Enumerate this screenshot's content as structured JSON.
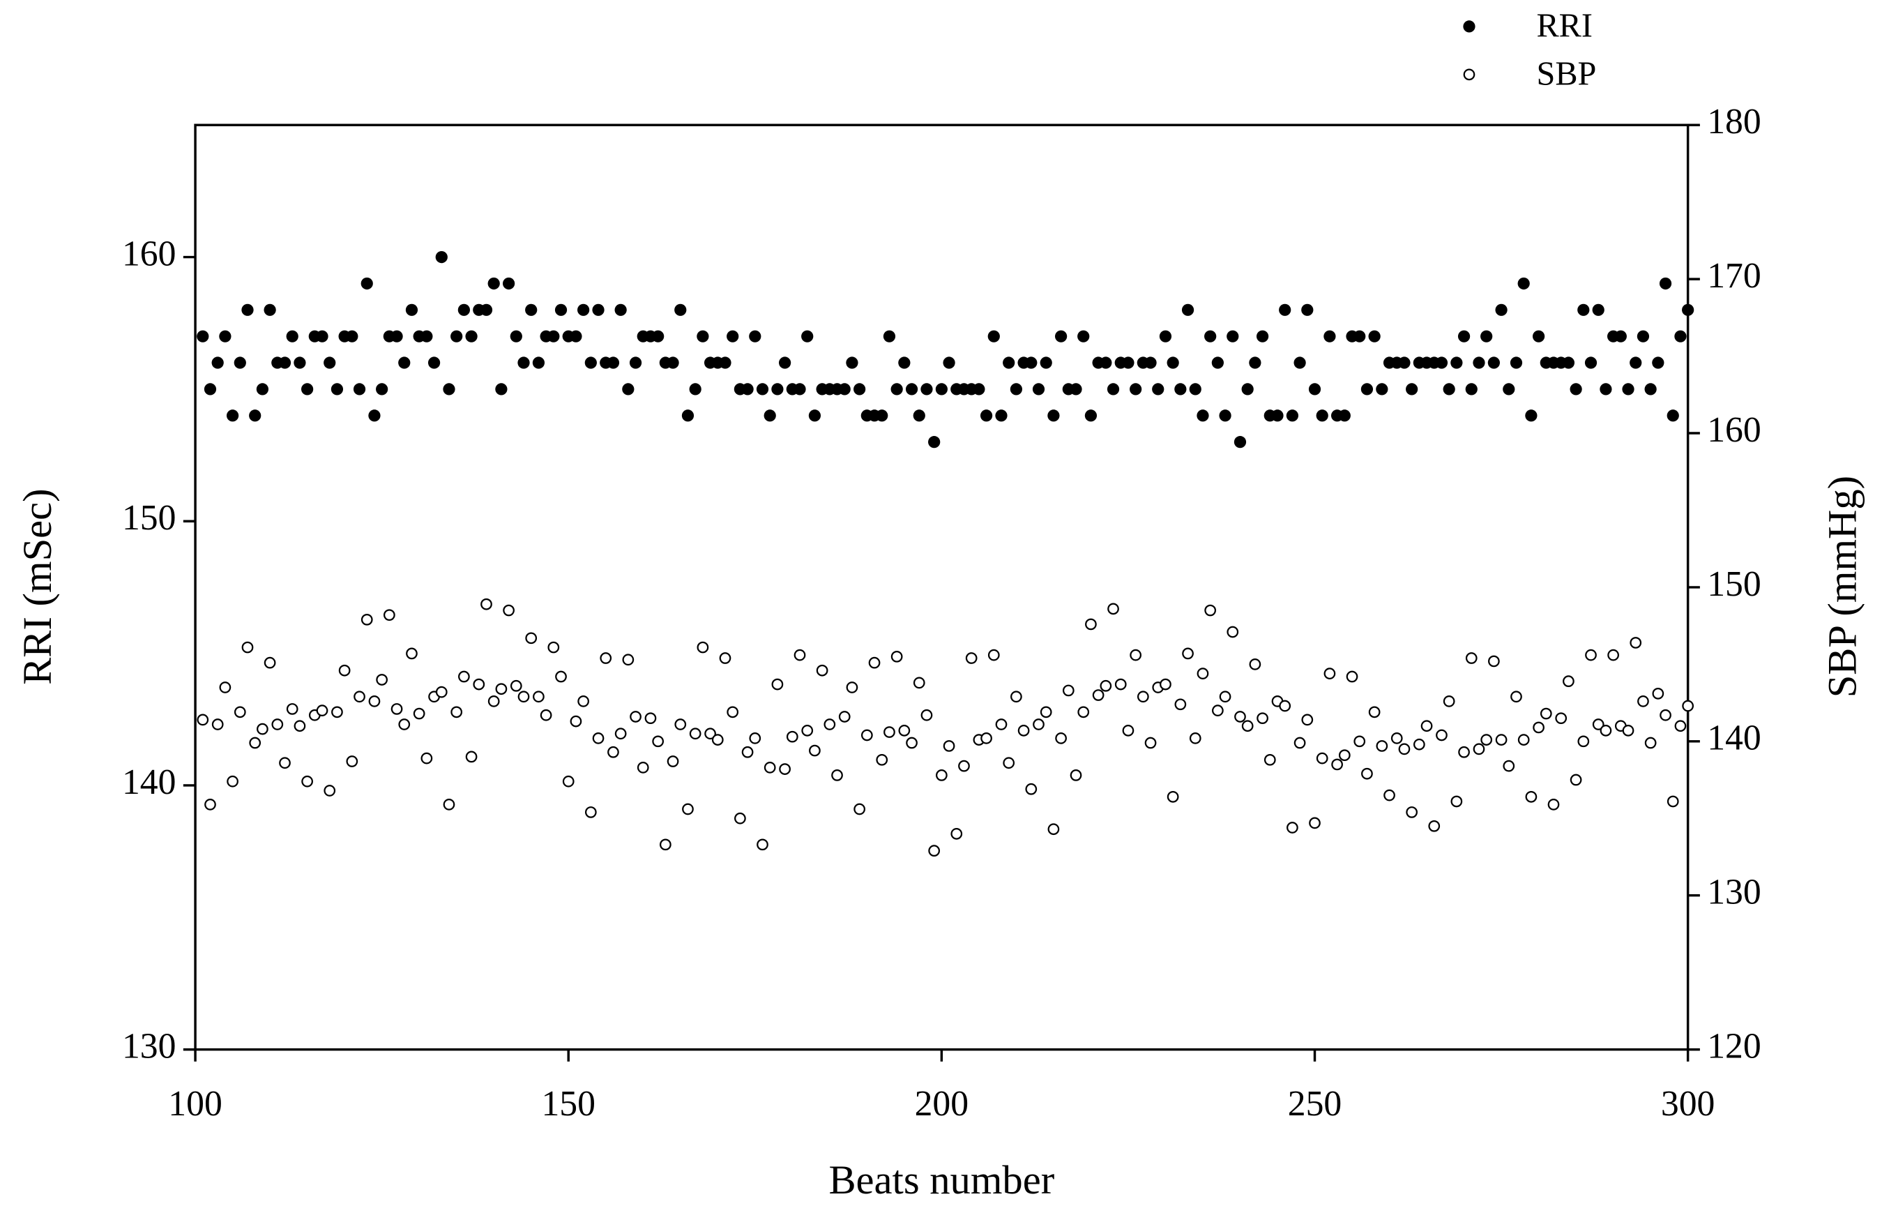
{
  "chart_data": {
    "type": "scatter",
    "x_label": "Beats number",
    "y_label": "RRI (mSec)",
    "y2_label": "SBP (mmHg)",
    "xlim": [
      100,
      300
    ],
    "xticks": [
      100,
      150,
      200,
      250,
      300
    ],
    "ylim": [
      130,
      165
    ],
    "yticks": [
      130,
      140,
      150,
      160
    ],
    "y2lim": [
      120,
      180
    ],
    "y2ticks": [
      120,
      130,
      140,
      150,
      160,
      170,
      180
    ],
    "legend": "upper right",
    "grid": false,
    "x": [
      101,
      102,
      103,
      104,
      105,
      106,
      107,
      108,
      109,
      110,
      111,
      112,
      113,
      114,
      115,
      116,
      117,
      118,
      119,
      120,
      121,
      122,
      123,
      124,
      125,
      126,
      127,
      128,
      129,
      130,
      131,
      132,
      133,
      134,
      135,
      136,
      137,
      138,
      139,
      140,
      141,
      142,
      143,
      144,
      145,
      146,
      147,
      148,
      149,
      150,
      151,
      152,
      153,
      154,
      155,
      156,
      157,
      158,
      159,
      160,
      161,
      162,
      163,
      164,
      165,
      166,
      167,
      168,
      169,
      170,
      171,
      172,
      173,
      174,
      175,
      176,
      177,
      178,
      179,
      180,
      181,
      182,
      183,
      184,
      185,
      186,
      187,
      188,
      189,
      190,
      191,
      192,
      193,
      194,
      195,
      196,
      197,
      198,
      199,
      200,
      201,
      202,
      203,
      204,
      205,
      206,
      207,
      208,
      209,
      210,
      211,
      212,
      213,
      214,
      215,
      216,
      217,
      218,
      219,
      220,
      221,
      222,
      223,
      224,
      225,
      226,
      227,
      228,
      229,
      230,
      231,
      232,
      233,
      234,
      235,
      236,
      237,
      238,
      239,
      240,
      241,
      242,
      243,
      244,
      245,
      246,
      247,
      248,
      249,
      250,
      251,
      252,
      253,
      254,
      255,
      256,
      257,
      258,
      259,
      260,
      261,
      262,
      263,
      264,
      265,
      266,
      267,
      268,
      269,
      270,
      271,
      272,
      273,
      274,
      275,
      276,
      277,
      278,
      279,
      280,
      281,
      282,
      283,
      284,
      285,
      286,
      287,
      288,
      289,
      290,
      291,
      292,
      293,
      294,
      295,
      296,
      297,
      298,
      299,
      300
    ],
    "series": [
      {
        "name": "RRI",
        "color": "#000000",
        "filled": true,
        "values": [
          157,
          155,
          156,
          157,
          154,
          156,
          158,
          154,
          155,
          158,
          156,
          156,
          157,
          156,
          155,
          157,
          157,
          156,
          155,
          157,
          157,
          155,
          159,
          154,
          155,
          157,
          157,
          156,
          158,
          157,
          157,
          156,
          160,
          155,
          157,
          158,
          157,
          158,
          158,
          159,
          155,
          159,
          157,
          156,
          158,
          156,
          157,
          157,
          158,
          157,
          157,
          158,
          156,
          158,
          156,
          156,
          158,
          155,
          156,
          157,
          157,
          157,
          156,
          156,
          158,
          154,
          155,
          157,
          156,
          156,
          156,
          157,
          155,
          155,
          157,
          155,
          154,
          155,
          156,
          155,
          155,
          157,
          154,
          155,
          155,
          155,
          155,
          156,
          155,
          154,
          154,
          154,
          157,
          155,
          156,
          155,
          154,
          155,
          153,
          155,
          156,
          155,
          155,
          155,
          155,
          154,
          157,
          154,
          156,
          155,
          156,
          156,
          155,
          156,
          154,
          157,
          155,
          155,
          157,
          154,
          156,
          156,
          155,
          156,
          156,
          155,
          156,
          156,
          155,
          157,
          156,
          155,
          158,
          155,
          154,
          157,
          156,
          154,
          157,
          153,
          155,
          156,
          157,
          154,
          154,
          158,
          154,
          156,
          158,
          155,
          154,
          157,
          154,
          154,
          157,
          157,
          155,
          157,
          155,
          156,
          156,
          156,
          155,
          156,
          156,
          156,
          156,
          155,
          156,
          157,
          155,
          156,
          157,
          156,
          158,
          155,
          156,
          159,
          154,
          157,
          156,
          156,
          156,
          156,
          155,
          158,
          156,
          158,
          155,
          157,
          157,
          155,
          156,
          157,
          155,
          156,
          159,
          154,
          157,
          158
        ]
      },
      {
        "name": "SBP",
        "color": "#000000",
        "filled": false,
        "axis": "y2",
        "values": [
          141.4,
          135.9,
          141.1,
          143.5,
          137.4,
          141.9,
          146.1,
          139.9,
          140.8,
          145.1,
          141.1,
          138.6,
          142.1,
          141.0,
          137.4,
          141.7,
          142.0,
          136.8,
          141.9,
          144.6,
          138.7,
          142.9,
          147.9,
          142.6,
          144.0,
          148.2,
          142.1,
          141.1,
          145.7,
          141.8,
          138.9,
          142.9,
          143.2,
          135.9,
          141.9,
          144.2,
          139.0,
          143.7,
          148.9,
          142.6,
          143.4,
          148.5,
          143.6,
          142.9,
          146.7,
          142.9,
          141.7,
          146.1,
          144.2,
          137.4,
          141.3,
          142.6,
          135.4,
          140.2,
          145.4,
          139.3,
          140.5,
          145.3,
          141.6,
          138.3,
          141.5,
          140.0,
          133.3,
          138.7,
          141.1,
          135.6,
          140.5,
          146.1,
          140.5,
          140.1,
          145.4,
          141.9,
          135.0,
          139.3,
          140.2,
          133.3,
          138.3,
          143.7,
          138.2,
          140.3,
          145.6,
          140.7,
          139.4,
          144.6,
          141.1,
          137.8,
          141.6,
          143.5,
          135.6,
          140.4,
          145.1,
          138.8,
          140.6,
          145.5,
          140.7,
          139.9,
          143.8,
          141.7,
          132.9,
          137.8,
          139.7,
          134.0,
          138.4,
          145.4,
          140.1,
          140.2,
          145.6,
          141.1,
          138.6,
          142.9,
          140.7,
          136.9,
          141.1,
          141.9,
          134.3,
          140.2,
          143.3,
          137.8,
          141.9,
          147.6,
          143.0,
          143.6,
          148.6,
          143.7,
          140.7,
          145.6,
          142.9,
          139.9,
          143.5,
          143.7,
          136.4,
          142.4,
          145.7,
          140.2,
          144.4,
          148.5,
          142.0,
          142.9,
          147.1,
          141.6,
          141.0,
          145.0,
          141.5,
          138.8,
          142.6,
          142.3,
          134.4,
          139.9,
          141.4,
          134.7,
          138.9,
          144.4,
          138.5,
          139.1,
          144.2,
          140.0,
          137.9,
          141.9,
          139.7,
          136.5,
          140.2,
          139.5,
          135.4,
          139.8,
          141.0,
          134.5,
          140.4,
          142.6,
          136.1,
          139.3,
          145.4,
          139.5,
          140.1,
          145.2,
          140.1,
          138.4,
          142.9,
          140.1,
          136.4,
          140.9,
          141.8,
          135.9,
          141.5,
          143.9,
          137.5,
          140.0,
          145.6,
          141.1,
          140.7,
          145.6,
          141.0,
          140.7,
          146.4,
          142.6,
          139.9,
          143.1,
          141.7,
          136.1,
          141.0,
          142.3
        ]
      }
    ]
  }
}
